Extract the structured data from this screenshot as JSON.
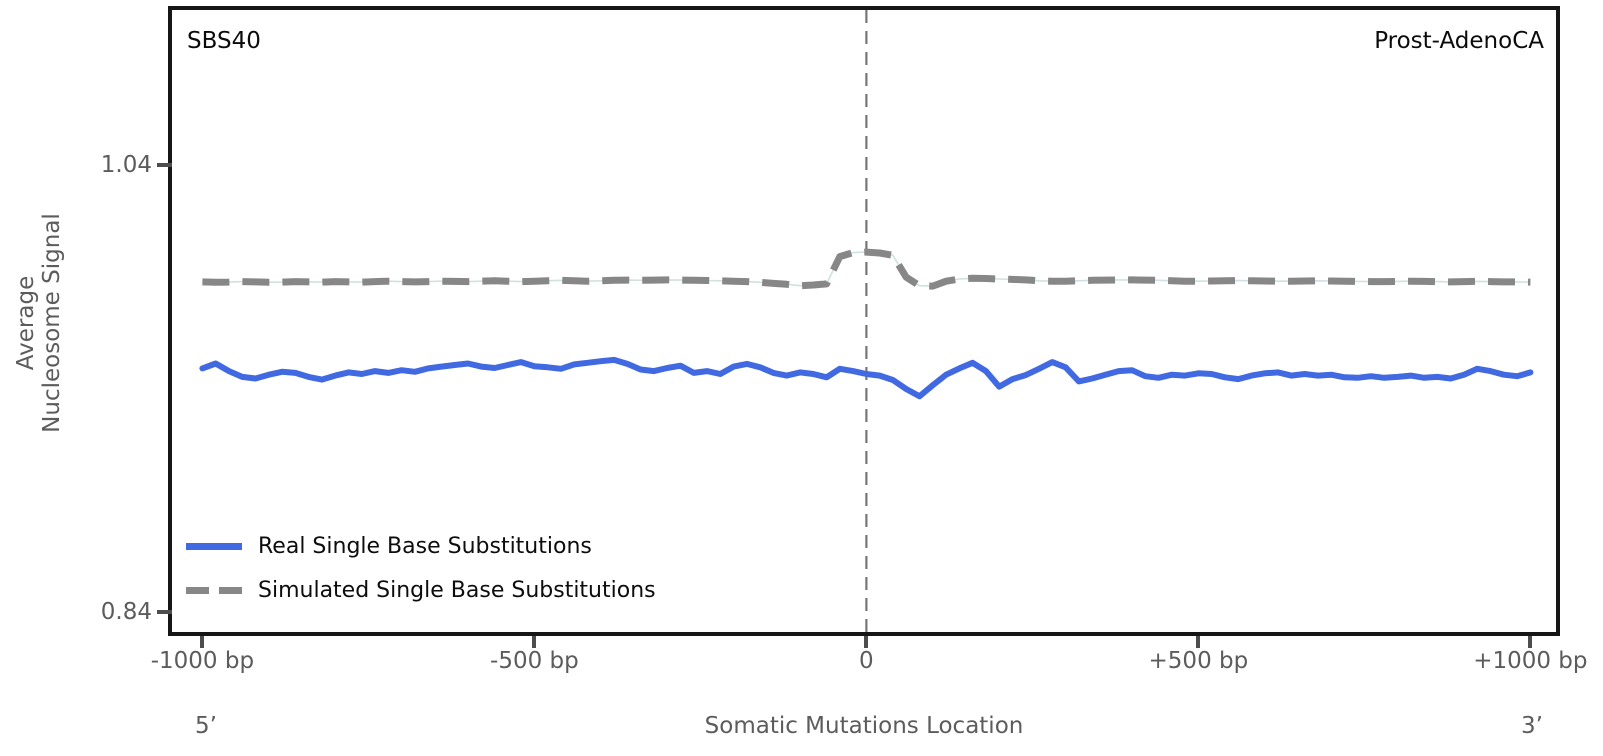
{
  "panel": {
    "signature_label": "SBS40",
    "cancer_type_label": "Prost-AdenoCA"
  },
  "axes": {
    "y_label_line1": "Average",
    "y_label_line2": "Nucleosome Signal",
    "x_label": "Somatic Mutations Location",
    "x_left_end_label": "5’",
    "x_right_end_label": "3’",
    "y_ticks": [
      {
        "value": 1.04,
        "label": "1.04"
      },
      {
        "value": 0.84,
        "label": "0.84"
      }
    ],
    "x_ticks": [
      {
        "value": -1000,
        "label": "-1000 bp"
      },
      {
        "value": -500,
        "label": "-500 bp"
      },
      {
        "value": 0,
        "label": "0"
      },
      {
        "value": 500,
        "label": "+500 bp"
      },
      {
        "value": 1000,
        "label": "+1000 bp"
      }
    ]
  },
  "legend": [
    {
      "id": "real-sbs",
      "label": "Real Single Base Substitutions",
      "color": "#4169e1",
      "style": "solid"
    },
    {
      "id": "simulated-sbs",
      "label": "Simulated Single Base Substitutions",
      "color": "#878787",
      "style": "dashed"
    }
  ],
  "colors": {
    "real_line": "#4169e1",
    "simulated_line": "#878787",
    "simulated_underlay": "#cfe2e0",
    "center_line": "#767676",
    "spine": "#161616",
    "tick_mark": "#4d4d4d",
    "axis_text": "#5c5c5c",
    "title_text": "#0b0b0b"
  },
  "chart_data": {
    "type": "line",
    "title": "",
    "xlabel": "Somatic Mutations Location",
    "ylabel": "Average Nucleosome Signal",
    "x_unit": "bp",
    "xlim": [
      -1045.8,
      1038.6
    ],
    "ylim": [
      0.8311,
      1.1093
    ],
    "grid": false,
    "legend_position": "lower-left",
    "center_line_x": 0,
    "x": [
      -1000,
      -980,
      -960,
      -940,
      -920,
      -900,
      -880,
      -860,
      -840,
      -820,
      -800,
      -780,
      -760,
      -740,
      -720,
      -700,
      -680,
      -660,
      -640,
      -620,
      -600,
      -580,
      -560,
      -540,
      -520,
      -500,
      -480,
      -460,
      -440,
      -420,
      -400,
      -380,
      -360,
      -340,
      -320,
      -300,
      -280,
      -260,
      -240,
      -220,
      -200,
      -180,
      -160,
      -140,
      -120,
      -100,
      -80,
      -60,
      -40,
      -20,
      0,
      20,
      40,
      60,
      80,
      100,
      120,
      140,
      160,
      180,
      200,
      220,
      240,
      260,
      280,
      300,
      320,
      340,
      360,
      380,
      400,
      420,
      440,
      460,
      480,
      500,
      520,
      540,
      560,
      580,
      600,
      620,
      640,
      660,
      680,
      700,
      720,
      740,
      760,
      780,
      800,
      820,
      840,
      860,
      880,
      900,
      920,
      940,
      960,
      980,
      1000
    ],
    "series": [
      {
        "name": "Real Single Base Substitutions",
        "id": "real-sbs",
        "color": "#4169e1",
        "style": "solid",
        "width": 6,
        "values": [
          0.949,
          0.9512,
          0.9478,
          0.9452,
          0.9445,
          0.9462,
          0.9475,
          0.947,
          0.9452,
          0.944,
          0.9458,
          0.9472,
          0.9465,
          0.9478,
          0.947,
          0.9482,
          0.9475,
          0.949,
          0.9498,
          0.9505,
          0.9512,
          0.9498,
          0.9492,
          0.9505,
          0.9518,
          0.95,
          0.9495,
          0.9488,
          0.9508,
          0.9515,
          0.9522,
          0.9528,
          0.951,
          0.9485,
          0.9478,
          0.9492,
          0.9502,
          0.947,
          0.9478,
          0.9465,
          0.9498,
          0.951,
          0.9495,
          0.947,
          0.9458,
          0.9472,
          0.9465,
          0.945,
          0.9488,
          0.9478,
          0.9465,
          0.9458,
          0.9438,
          0.9398,
          0.9365,
          0.9415,
          0.9462,
          0.949,
          0.9515,
          0.9478,
          0.9408,
          0.9442,
          0.946,
          0.9488,
          0.9518,
          0.9495,
          0.9432,
          0.9445,
          0.9462,
          0.9478,
          0.9482,
          0.9455,
          0.9448,
          0.9462,
          0.9458,
          0.9468,
          0.9465,
          0.945,
          0.9442,
          0.9458,
          0.9468,
          0.9472,
          0.9458,
          0.9465,
          0.9458,
          0.9462,
          0.945,
          0.9448,
          0.9455,
          0.9448,
          0.9452,
          0.9458,
          0.9448,
          0.9452,
          0.9445,
          0.9462,
          0.9488,
          0.9478,
          0.9462,
          0.9455,
          0.9472
        ]
      },
      {
        "name": "Simulated Single Base Substitutions",
        "id": "simulated-sbs",
        "color": "#878787",
        "style": "dashed",
        "width": 7,
        "dash": "27 13",
        "values": [
          0.9877,
          0.9875,
          0.9876,
          0.9878,
          0.9877,
          0.9875,
          0.9876,
          0.9878,
          0.9877,
          0.9876,
          0.9878,
          0.9877,
          0.9876,
          0.9878,
          0.988,
          0.9878,
          0.9877,
          0.9878,
          0.988,
          0.9879,
          0.9878,
          0.988,
          0.9882,
          0.988,
          0.9878,
          0.988,
          0.9882,
          0.9884,
          0.9882,
          0.988,
          0.9882,
          0.9884,
          0.9885,
          0.9884,
          0.9885,
          0.9886,
          0.9885,
          0.9884,
          0.9883,
          0.9882,
          0.988,
          0.9878,
          0.9875,
          0.987,
          0.9866,
          0.986,
          0.9863,
          0.9868,
          0.999,
          1.0008,
          1.001,
          1.0006,
          0.9996,
          0.9898,
          0.986,
          0.9858,
          0.988,
          0.989,
          0.9893,
          0.9892,
          0.989,
          0.9888,
          0.9886,
          0.9882,
          0.988,
          0.988,
          0.9882,
          0.9884,
          0.9885,
          0.9886,
          0.9886,
          0.9885,
          0.9884,
          0.9882,
          0.988,
          0.988,
          0.9881,
          0.9882,
          0.9883,
          0.9882,
          0.9881,
          0.988,
          0.988,
          0.9881,
          0.9882,
          0.9881,
          0.988,
          0.9879,
          0.9878,
          0.9878,
          0.9879,
          0.988,
          0.9879,
          0.9878,
          0.9877,
          0.9878,
          0.9879,
          0.9878,
          0.9877,
          0.9877,
          0.9876
        ]
      }
    ]
  }
}
